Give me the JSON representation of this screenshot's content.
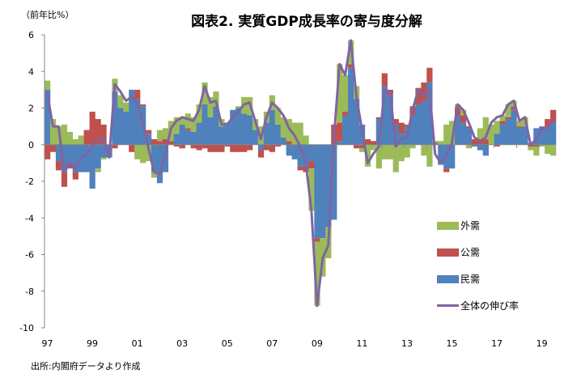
{
  "chart_data": {
    "type": "bar",
    "title": "図表2. 実質GDP成長率の寄与度分解",
    "ylabel": "（前年比%）",
    "source": "出所:内閣府データより作成",
    "ylim": [
      -10,
      6
    ],
    "yticks": [
      6,
      4,
      2,
      0,
      -2,
      -4,
      -6,
      -8,
      -10
    ],
    "x_tick_labels": [
      "97",
      "99",
      "01",
      "03",
      "05",
      "07",
      "09",
      "11",
      "13",
      "15",
      "17",
      "19"
    ],
    "stacked": true,
    "legend_position": "bottom-right",
    "series": [
      {
        "name": "外需",
        "type": "bar",
        "color": "#9BBB59",
        "values": [
          0.5,
          1.4,
          1.0,
          1.1,
          0.7,
          0.3,
          0.5,
          0,
          0,
          -0.2,
          -0.1,
          0,
          0.7,
          0.7,
          0.5,
          0,
          -0.8,
          -1.0,
          -0.9,
          -0.3,
          0.6,
          0.6,
          1.1,
          0.9,
          0.4,
          0.8,
          0.8,
          1.0,
          1.2,
          1.1,
          0.8,
          0.4,
          0,
          0,
          0.1,
          0.9,
          1.0,
          0.6,
          1.0,
          0.6,
          0.8,
          0.9,
          1.1,
          1.2,
          1.2,
          1.2,
          0.5,
          -2.3,
          -3.5,
          -2.1,
          -1.7,
          0,
          3.2,
          2.0,
          1.3,
          0.7,
          -0.2,
          -1.2,
          -0.3,
          -1.3,
          -0.8,
          -0.8,
          -1.5,
          -0.9,
          -0.7,
          -0.2,
          0,
          -0.6,
          -1.2,
          0.1,
          0.2,
          1.1,
          1.3,
          0.2,
          0.3,
          -0.2,
          0,
          0.6,
          1.2,
          1.1,
          0.7,
          0.3,
          0.7,
          0.3,
          0.3,
          0.5,
          -0.2,
          -0.5,
          -0.1,
          -0.5,
          -0.6
        ]
      },
      {
        "name": "公需",
        "type": "bar",
        "color": "#C0504D",
        "values": [
          -0.8,
          -0.4,
          -0.5,
          -0.8,
          -0.3,
          -0.4,
          0,
          0.8,
          1.8,
          1.4,
          1.1,
          0,
          -0.2,
          0,
          0,
          -0.4,
          0.5,
          0.1,
          0.2,
          0.3,
          0.2,
          0.3,
          0.2,
          -0.1,
          -0.2,
          0.1,
          -0.2,
          -0.3,
          -0.2,
          -0.4,
          -0.4,
          -0.4,
          -0.1,
          -0.4,
          -0.4,
          -0.4,
          -0.3,
          0,
          -0.4,
          -0.3,
          -0.4,
          -0.1,
          0,
          0.2,
          0,
          -0.2,
          -0.3,
          -0.4,
          -0.2,
          0,
          0,
          1.1,
          1.0,
          0.2,
          0.2,
          -0.2,
          -0.2,
          0.3,
          0.2,
          0.1,
          0.7,
          0.3,
          0.3,
          0.6,
          0.1,
          0.5,
          0.9,
          1.0,
          0.8,
          0,
          0,
          -0.2,
          0,
          0.4,
          0.4,
          0.1,
          0.3,
          0.3,
          0.3,
          0,
          -0.1,
          0.2,
          0.1,
          0.2,
          0.1,
          0,
          -0.1,
          -0.1,
          0,
          0.4,
          0.7
        ]
      },
      {
        "name": "民需",
        "type": "bar",
        "color": "#4F81BD",
        "values": [
          3.0,
          0,
          -0.9,
          -1.5,
          -1.0,
          -1.5,
          -1.5,
          -1.5,
          -2.4,
          -1.3,
          -0.7,
          -0.7,
          2.9,
          2.0,
          1.8,
          3.0,
          2.5,
          2.1,
          0.6,
          -1.5,
          -2.1,
          -1.5,
          0,
          0.6,
          1.1,
          0.8,
          0.7,
          1.2,
          2.2,
          1.5,
          2.1,
          1.0,
          1.2,
          1.9,
          2.0,
          1.7,
          1.6,
          0.8,
          -0.3,
          1.2,
          1.9,
          1.1,
          0.4,
          -0.6,
          -0.8,
          -1.2,
          -1.2,
          -0.9,
          -5.1,
          -5.1,
          -4.5,
          -4.1,
          0.2,
          1.6,
          4.2,
          2.5,
          1.1,
          0,
          0,
          1.4,
          3.2,
          2.7,
          1.1,
          0.6,
          1.0,
          1.6,
          2.2,
          2.4,
          3.4,
          0.1,
          -1.1,
          -1.3,
          -1.3,
          1.6,
          1.2,
          0.9,
          -0.1,
          -0.3,
          -0.6,
          0,
          0.6,
          1.1,
          1.4,
          1.9,
          0.9,
          1.0,
          0.1,
          0.9,
          1.0,
          1.0,
          1.2
        ]
      },
      {
        "name": "全体の伸び率",
        "type": "line",
        "color": "#8064A2",
        "values": [
          2.8,
          1.0,
          1.0,
          -1.5,
          -1.0,
          -1.3,
          -0.7,
          -0.5,
          -0.1,
          0.3,
          0.3,
          -0.7,
          3.3,
          2.9,
          2.4,
          2.6,
          2.3,
          1.2,
          -0.2,
          -1.5,
          -1.6,
          -0.5,
          0.9,
          1.3,
          1.5,
          1.4,
          1.3,
          1.9,
          3.2,
          2.3,
          2.4,
          1.1,
          1.1,
          1.5,
          1.8,
          2.2,
          2.3,
          1.3,
          0.3,
          1.5,
          2.3,
          2.0,
          1.6,
          0.9,
          0.5,
          -0.1,
          -1.0,
          -3.6,
          -8.8,
          -6.2,
          -5.5,
          0.4,
          4.4,
          3.8,
          5.7,
          2.6,
          0.8,
          -1.0,
          -0.5,
          -0.1,
          3.0,
          2.9,
          -0.1,
          0.3,
          0.4,
          1.9,
          3.0,
          2.7,
          3.0,
          -0.5,
          -1.0,
          -0.6,
          0.1,
          2.2,
          1.9,
          1.2,
          0.4,
          0.2,
          0.4,
          1.2,
          1.5,
          1.6,
          2.2,
          2.4,
          1.3,
          1.5,
          0.0,
          0.3,
          0.9,
          0.9,
          1.3
        ]
      }
    ]
  }
}
